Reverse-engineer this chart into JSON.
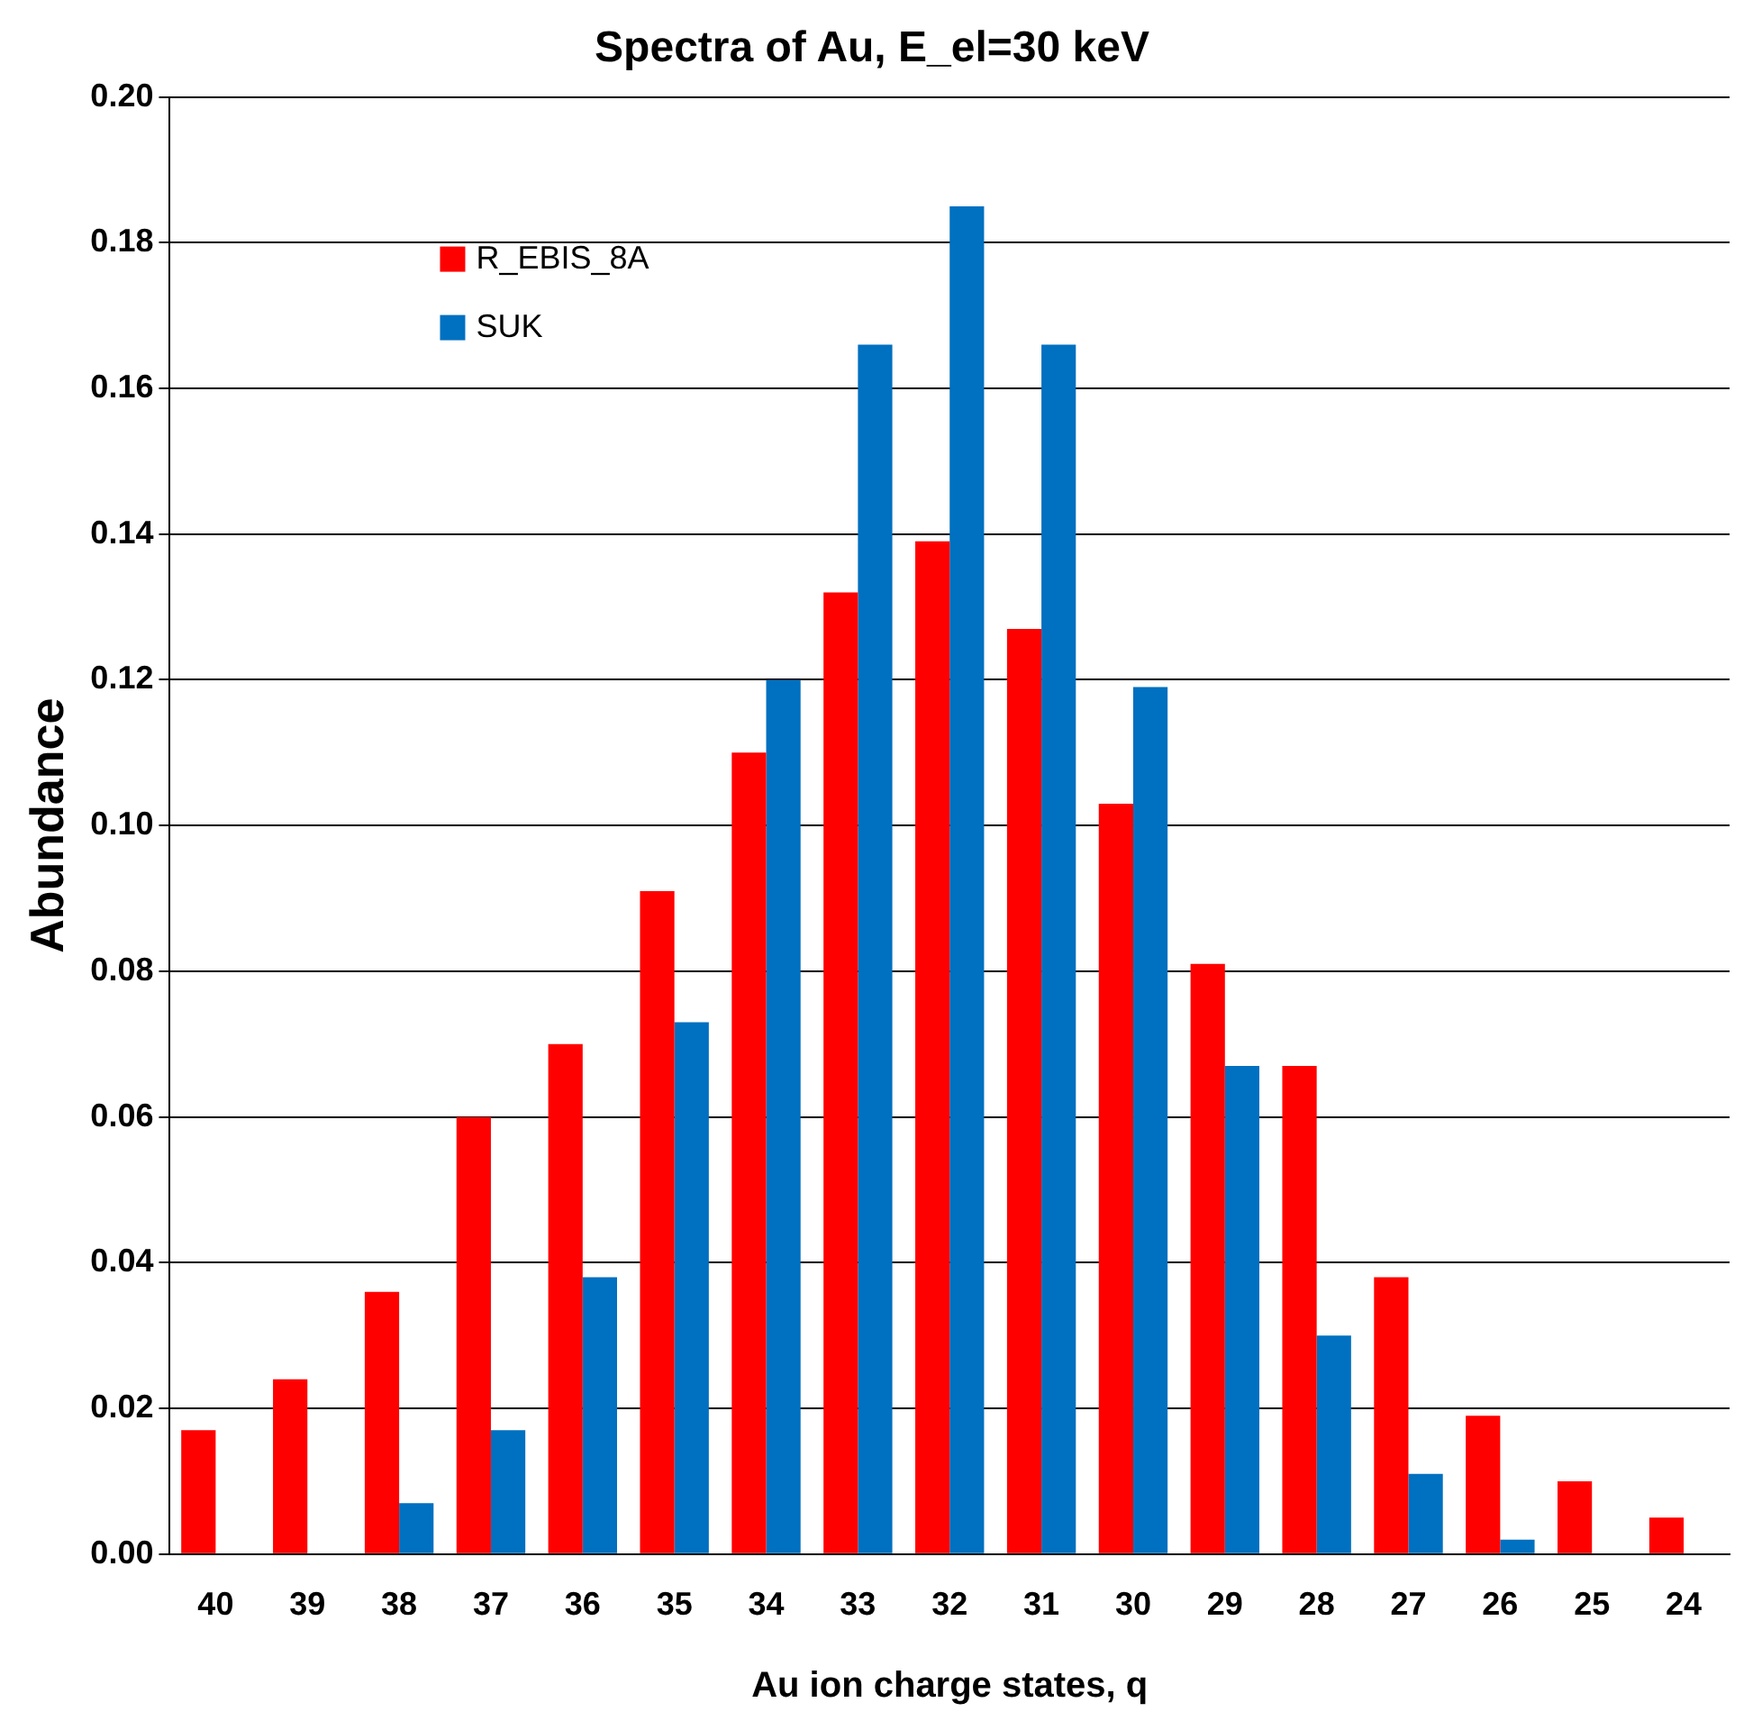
{
  "chart_data": {
    "type": "bar",
    "title": "Spectra of Au, E_el=30 keV",
    "xlabel": "Au ion charge states, q",
    "ylabel": "Abundance",
    "categories": [
      "40",
      "39",
      "38",
      "37",
      "36",
      "35",
      "34",
      "33",
      "32",
      "31",
      "30",
      "29",
      "28",
      "27",
      "26",
      "25",
      "24"
    ],
    "series": [
      {
        "name": "R_EBIS_8A",
        "color": "#ff0000",
        "values": [
          0.017,
          0.024,
          0.036,
          0.06,
          0.07,
          0.091,
          0.11,
          0.132,
          0.139,
          0.127,
          0.103,
          0.081,
          0.067,
          0.038,
          0.019,
          0.01,
          0.005
        ]
      },
      {
        "name": "SUK",
        "color": "#0070c0",
        "values": [
          0,
          0,
          0.007,
          0.017,
          0.038,
          0.073,
          0.12,
          0.166,
          0.185,
          0.166,
          0.119,
          0.067,
          0.03,
          0.011,
          0.002,
          0,
          0
        ]
      }
    ],
    "ylim": [
      0,
      0.2
    ],
    "yticks": [
      {
        "value": 0,
        "label": "0.00"
      },
      {
        "value": 0.02,
        "label": "0.02"
      },
      {
        "value": 0.04,
        "label": "0.04"
      },
      {
        "value": 0.06,
        "label": "0.06"
      },
      {
        "value": 0.08,
        "label": "0.08"
      },
      {
        "value": 0.1,
        "label": "0.10"
      },
      {
        "value": 0.12,
        "label": "0.12"
      },
      {
        "value": 0.14,
        "label": "0.14"
      },
      {
        "value": 0.16,
        "label": "0.16"
      },
      {
        "value": 0.18,
        "label": "0.18"
      },
      {
        "value": 0.2,
        "label": "0.20"
      }
    ],
    "grid": "y",
    "legend": "top left"
  }
}
